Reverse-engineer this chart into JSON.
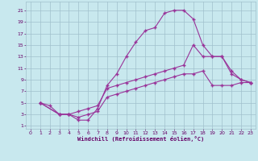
{
  "xlabel": "Windchill (Refroidissement éolien,°C)",
  "bg_color": "#c8e8ee",
  "line_color": "#993399",
  "grid_color": "#a0c0cc",
  "xlim": [
    -0.5,
    23.5
  ],
  "ylim": [
    0.5,
    22.5
  ],
  "xticks": [
    0,
    1,
    2,
    3,
    4,
    5,
    6,
    7,
    8,
    9,
    10,
    11,
    12,
    13,
    14,
    15,
    16,
    17,
    18,
    19,
    20,
    21,
    22,
    23
  ],
  "yticks": [
    1,
    3,
    5,
    7,
    9,
    11,
    13,
    15,
    17,
    19,
    21
  ],
  "curve1_x": [
    1,
    2,
    3,
    4,
    5,
    6,
    7,
    8,
    9,
    10,
    11,
    12,
    13,
    14,
    15,
    16,
    17,
    18,
    19,
    20,
    21,
    22,
    23
  ],
  "curve1_y": [
    5,
    4.5,
    3,
    3,
    2,
    2,
    4,
    8,
    10,
    13,
    15.5,
    17.5,
    18,
    20.5,
    21,
    21,
    19.5,
    15,
    13,
    13,
    10,
    9,
    8.5
  ],
  "curve2_x": [
    1,
    3,
    4,
    5,
    6,
    7,
    8,
    9,
    10,
    11,
    12,
    13,
    14,
    15,
    16,
    17,
    18,
    19,
    20,
    21,
    22,
    23
  ],
  "curve2_y": [
    5,
    3,
    3,
    3.5,
    4,
    4.5,
    7.5,
    8,
    8.5,
    9,
    9.5,
    10,
    10.5,
    11,
    11.5,
    15,
    13,
    13,
    13,
    10.5,
    9,
    8.5
  ],
  "curve3_x": [
    1,
    3,
    4,
    5,
    6,
    7,
    8,
    9,
    10,
    11,
    12,
    13,
    14,
    15,
    16,
    17,
    18,
    19,
    20,
    21,
    22,
    23
  ],
  "curve3_y": [
    5,
    3,
    3,
    2.5,
    3,
    3.5,
    6,
    6.5,
    7,
    7.5,
    8,
    8.5,
    9,
    9.5,
    10,
    10,
    10.5,
    8,
    8,
    8,
    8.5,
    8.5
  ]
}
